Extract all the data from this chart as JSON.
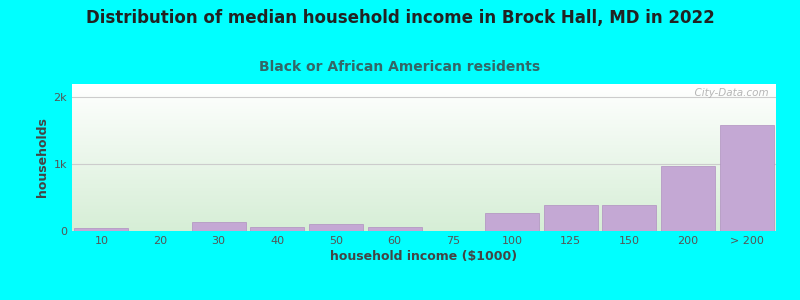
{
  "title": "Distribution of median household income in Brock Hall, MD in 2022",
  "subtitle": "Black or African American residents",
  "xlabel": "household income ($1000)",
  "ylabel": "households",
  "background_color": "#00FFFF",
  "plot_bg_top": "#FFFFFF",
  "plot_bg_bottom": "#D6EED6",
  "bar_color": "#C4A8D4",
  "bar_edge_color": "#B090C0",
  "categories": [
    "10",
    "20",
    "30",
    "40",
    "50",
    "60",
    "75",
    "100",
    "125",
    "150",
    "200",
    "> 200"
  ],
  "values": [
    50,
    5,
    130,
    65,
    110,
    60,
    5,
    270,
    390,
    390,
    980,
    1580
  ],
  "ylim": [
    0,
    2200
  ],
  "yticks": [
    0,
    1000,
    2000
  ],
  "ytick_labels": [
    "0",
    "1k",
    "2k"
  ],
  "watermark": "  City-Data.com",
  "title_fontsize": 12,
  "subtitle_fontsize": 10,
  "axis_label_fontsize": 9,
  "tick_fontsize": 8,
  "title_color": "#222222",
  "subtitle_color": "#336666",
  "tick_color": "#555555",
  "axis_label_color": "#444444"
}
